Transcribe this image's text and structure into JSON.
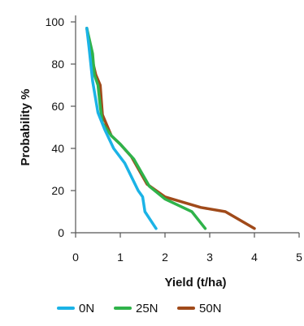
{
  "chart_data": {
    "type": "line",
    "title": "",
    "xlabel": "Yield (t/ha)",
    "ylabel": "Probability %",
    "xlim": [
      0,
      5
    ],
    "ylim": [
      0,
      100
    ],
    "xticks": [
      0,
      1,
      2,
      3,
      4,
      5
    ],
    "yticks": [
      0,
      20,
      40,
      60,
      80,
      100
    ],
    "grid": false,
    "legend_position": "bottom",
    "series": [
      {
        "name": "0N",
        "color": "#1bb3e6",
        "points": [
          [
            0.25,
            97
          ],
          [
            0.3,
            88
          ],
          [
            0.38,
            72
          ],
          [
            0.5,
            57
          ],
          [
            0.65,
            49
          ],
          [
            0.85,
            40
          ],
          [
            1.1,
            33
          ],
          [
            1.4,
            20
          ],
          [
            1.5,
            17
          ],
          [
            1.55,
            10
          ],
          [
            1.8,
            2
          ]
        ]
      },
      {
        "name": "25N",
        "color": "#2fb34a",
        "points": [
          [
            0.25,
            97
          ],
          [
            0.38,
            85
          ],
          [
            0.42,
            75
          ],
          [
            0.5,
            70
          ],
          [
            0.55,
            60
          ],
          [
            0.6,
            52
          ],
          [
            0.8,
            46
          ],
          [
            1.0,
            42
          ],
          [
            1.3,
            35
          ],
          [
            1.65,
            22
          ],
          [
            2.0,
            16
          ],
          [
            2.6,
            10
          ],
          [
            2.9,
            2
          ]
        ]
      },
      {
        "name": "50N",
        "color": "#a04a1a",
        "points": [
          [
            0.25,
            97
          ],
          [
            0.35,
            84
          ],
          [
            0.45,
            75
          ],
          [
            0.55,
            70
          ],
          [
            0.6,
            56
          ],
          [
            0.8,
            46
          ],
          [
            1.0,
            42
          ],
          [
            1.25,
            36
          ],
          [
            1.6,
            23
          ],
          [
            2.0,
            17
          ],
          [
            2.8,
            12
          ],
          [
            3.35,
            10
          ],
          [
            4.0,
            2
          ]
        ]
      }
    ]
  }
}
